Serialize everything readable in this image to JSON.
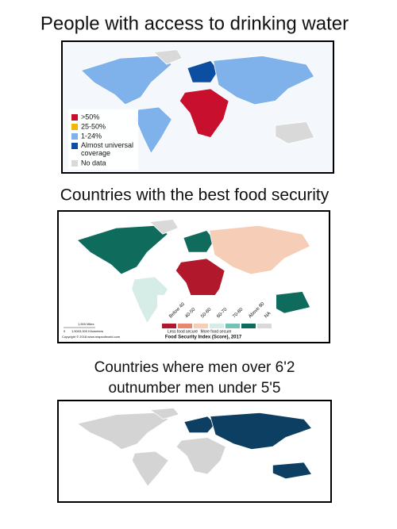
{
  "panels": [
    {
      "title": "People with access to drinking water",
      "legend": [
        {
          "label": ">50%",
          "color": "#c8102e"
        },
        {
          "label": "25-50%",
          "color": "#f2b705"
        },
        {
          "label": "1-24%",
          "color": "#7fb2ea"
        },
        {
          "label": "Almost universal coverage",
          "color": "#0b4ea2"
        },
        {
          "label": "No data",
          "color": "#d9d9d9"
        }
      ]
    },
    {
      "title": "Countries with the best food security",
      "legend": [
        {
          "label": "Below 40",
          "color": "#b2182b"
        },
        {
          "label": "40-50",
          "color": "#e8876d"
        },
        {
          "label": "50-60",
          "color": "#f6cdb6"
        },
        {
          "label": "60-70",
          "color": "#d6ece7"
        },
        {
          "label": "70-80",
          "color": "#74c2b4"
        },
        {
          "label": "Above 80",
          "color": "#0f6b5c"
        },
        {
          "label": "NA",
          "color": "#d9d9d9"
        }
      ],
      "legend_note_left": "Less food secure",
      "legend_note_right": "More food secure",
      "legend_title": "Food Security Index (Score), 2017",
      "scale": [
        "1,500 Miles",
        "0",
        "1,500",
        "3,000 Kilometers"
      ],
      "copyright": "Copyright © 2018 www.mapsofworld.com"
    },
    {
      "title_lines": [
        "Countries where men over 6'2",
        "outnumber men under 5'5"
      ]
    }
  ]
}
